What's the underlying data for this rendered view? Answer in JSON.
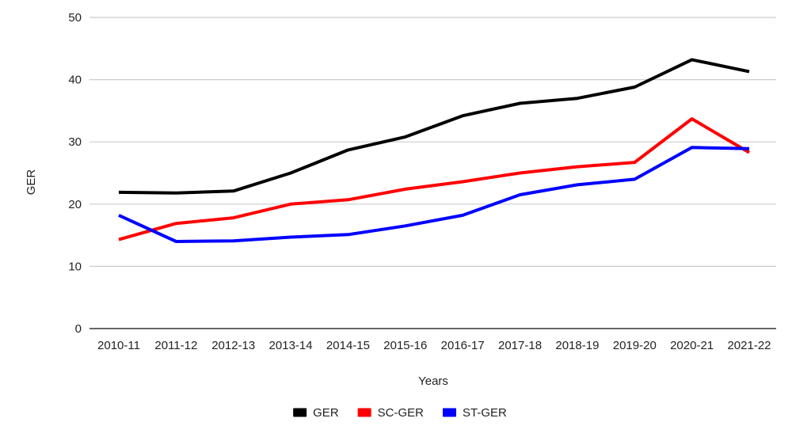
{
  "chart_data": {
    "type": "line",
    "title": "",
    "xlabel": "Years",
    "ylabel": "GER",
    "ylim": [
      0,
      50
    ],
    "yticks": [
      "0",
      "10",
      "20",
      "30",
      "40",
      "50"
    ],
    "grid": true,
    "legend_position": "bottom",
    "categories": [
      "2010-11",
      "2011-12",
      "2012-13",
      "2013-14",
      "2014-15",
      "2015-16",
      "2016-17",
      "2017-18",
      "2018-19",
      "2019-20",
      "2020-21",
      "2021-22"
    ],
    "series": [
      {
        "name": "GER",
        "color": "#000000",
        "values": [
          21.9,
          21.8,
          22.1,
          25.0,
          28.7,
          30.8,
          34.2,
          36.2,
          37.0,
          38.8,
          43.2,
          41.3
        ]
      },
      {
        "name": "SC-GER",
        "color": "#ff0000",
        "values": [
          14.3,
          16.9,
          17.8,
          20.0,
          20.7,
          22.4,
          23.6,
          25.0,
          26.0,
          26.7,
          33.7,
          28.3
        ]
      },
      {
        "name": "ST-GER",
        "color": "#0000ff",
        "values": [
          18.2,
          14.0,
          14.1,
          14.7,
          15.1,
          16.5,
          18.2,
          21.5,
          23.1,
          24.0,
          29.1,
          28.9
        ]
      }
    ]
  }
}
